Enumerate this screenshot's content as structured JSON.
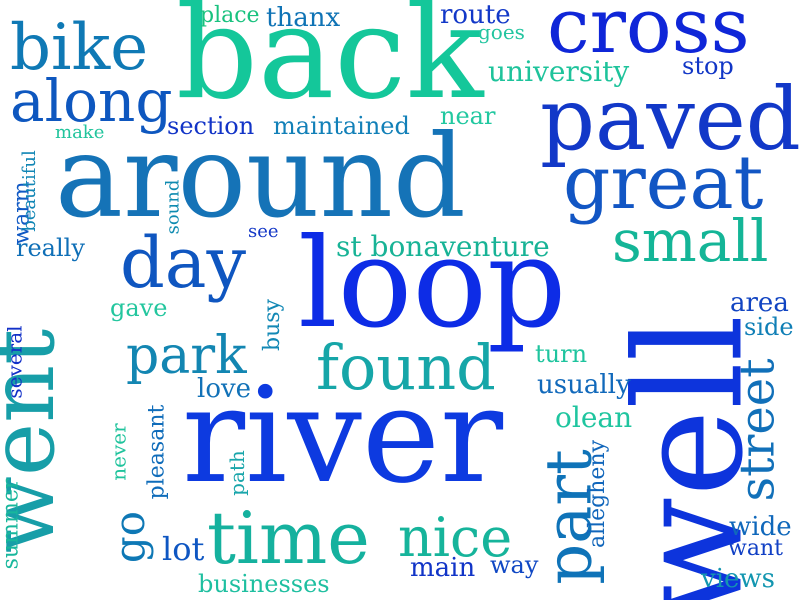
{
  "cloud": {
    "words": [
      {
        "text": "back",
        "color": "#14c79a",
        "rotate": 0
      },
      {
        "text": "cross",
        "color": "#0f26d8",
        "rotate": 0
      },
      {
        "text": "bike",
        "color": "#0f79b5",
        "rotate": 0
      },
      {
        "text": "along",
        "color": "#0e57bf",
        "rotate": 0
      },
      {
        "text": "place",
        "color": "#19c27f",
        "rotate": 0
      },
      {
        "text": "thanx",
        "color": "#0f73b5",
        "rotate": 0
      },
      {
        "text": "route",
        "color": "#1238c8",
        "rotate": 0
      },
      {
        "text": "goes",
        "color": "#23c5a0",
        "rotate": 0
      },
      {
        "text": "university",
        "color": "#1ec39b",
        "rotate": 0
      },
      {
        "text": "stop",
        "color": "#1136c6",
        "rotate": 0
      },
      {
        "text": "paved",
        "color": "#1238c8",
        "rotate": 0
      },
      {
        "text": "around",
        "color": "#1573b7",
        "rotate": 0
      },
      {
        "text": "great",
        "color": "#1256c4",
        "rotate": 0
      },
      {
        "text": "make",
        "color": "#21c49c",
        "rotate": 0
      },
      {
        "text": "section",
        "color": "#1234c7",
        "rotate": 0
      },
      {
        "text": "maintained",
        "color": "#1280b8",
        "rotate": 0
      },
      {
        "text": "near",
        "color": "#22c8a0",
        "rotate": 0
      },
      {
        "text": "small",
        "color": "#14b597",
        "rotate": 0
      },
      {
        "text": "st bonaventure",
        "color": "#18b396",
        "rotate": 0
      },
      {
        "text": "see",
        "color": "#1236c6",
        "rotate": 0
      },
      {
        "text": "really",
        "color": "#0f6fb7",
        "rotate": 0
      },
      {
        "text": "warm",
        "color": "#0f58c4",
        "rotate": -90
      },
      {
        "text": "beautiful",
        "color": "#1186b5",
        "rotate": -90
      },
      {
        "text": "sound",
        "color": "#0f8bb0",
        "rotate": -90
      },
      {
        "text": "day",
        "color": "#0f56c0",
        "rotate": 0
      },
      {
        "text": "loop",
        "color": "#0d2ce6",
        "rotate": 0
      },
      {
        "text": "went",
        "color": "#179ea8",
        "rotate": -90
      },
      {
        "text": "gave",
        "color": "#23c69e",
        "rotate": 0
      },
      {
        "text": "park",
        "color": "#1386b2",
        "rotate": 0
      },
      {
        "text": "busy",
        "color": "#1288b5",
        "rotate": -90
      },
      {
        "text": "found",
        "color": "#16a6a8",
        "rotate": 0
      },
      {
        "text": "several",
        "color": "#1230c8",
        "rotate": -90
      },
      {
        "text": "love",
        "color": "#1272b8",
        "rotate": 0
      },
      {
        "text": "pleasant",
        "color": "#0f6cba",
        "rotate": -90
      },
      {
        "text": "never",
        "color": "#1fc39c",
        "rotate": -90
      },
      {
        "text": "river",
        "color": "#0d3ae0",
        "rotate": 0
      },
      {
        "text": "well",
        "color": "#0d34dc",
        "rotate": -90
      },
      {
        "text": "area",
        "color": "#1144c2",
        "rotate": 0
      },
      {
        "text": "side",
        "color": "#107fb6",
        "rotate": 0
      },
      {
        "text": "turn",
        "color": "#1fc49e",
        "rotate": 0
      },
      {
        "text": "usually",
        "color": "#1169bb",
        "rotate": 0
      },
      {
        "text": "olean",
        "color": "#1fc59f",
        "rotate": 0
      },
      {
        "text": "street",
        "color": "#1170b9",
        "rotate": -90
      },
      {
        "text": "part",
        "color": "#0f73b8",
        "rotate": -90
      },
      {
        "text": "allegheny",
        "color": "#1166bb",
        "rotate": -90
      },
      {
        "text": "path",
        "color": "#1aa6ab",
        "rotate": -90
      },
      {
        "text": "summer",
        "color": "#18b79c",
        "rotate": -90
      },
      {
        "text": "go",
        "color": "#0e78b5",
        "rotate": -90
      },
      {
        "text": "lot",
        "color": "#0e56c2",
        "rotate": 0
      },
      {
        "text": "time",
        "color": "#15b19e",
        "rotate": 0
      },
      {
        "text": "nice",
        "color": "#16b49b",
        "rotate": 0
      },
      {
        "text": "main",
        "color": "#1134c7",
        "rotate": 0
      },
      {
        "text": "way",
        "color": "#1048c4",
        "rotate": 0
      },
      {
        "text": "wide",
        "color": "#1068bb",
        "rotate": 0
      },
      {
        "text": "want",
        "color": "#1140c5",
        "rotate": 0
      },
      {
        "text": "businesses",
        "color": "#1ebfa0",
        "rotate": 0
      },
      {
        "text": "views",
        "color": "#1396b0",
        "rotate": 0
      }
    ]
  }
}
